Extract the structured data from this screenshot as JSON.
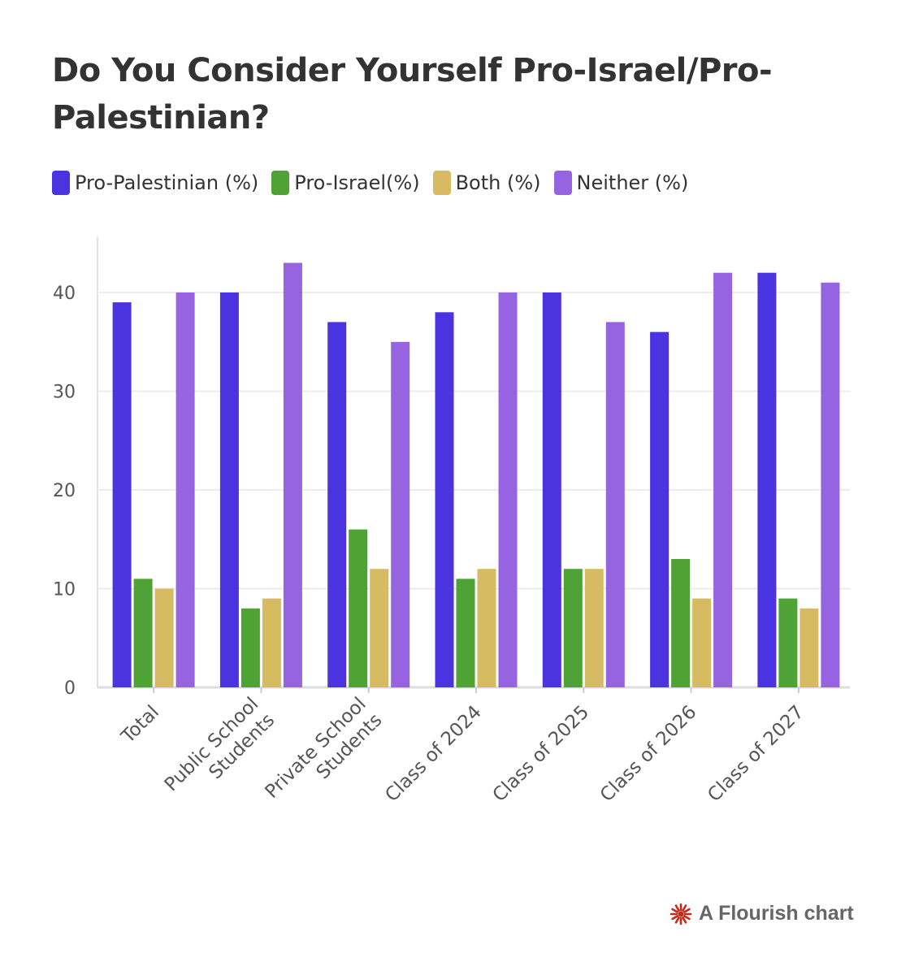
{
  "chart_data": {
    "type": "bar",
    "title": "Do You Consider Yourself Pro-Israel/Pro-Palestinian?",
    "categories": [
      "Total",
      "Public School Students",
      "Private School Students",
      "Class of 2024",
      "Class of 2025",
      "Class of 2026",
      "Class of 2027"
    ],
    "series": [
      {
        "name": "Pro-Palestinian (%)",
        "color": "#4b33e0",
        "values": [
          39,
          40,
          37,
          38,
          40,
          36,
          42
        ]
      },
      {
        "name": "Pro-Israel(%)",
        "color": "#4ea236",
        "values": [
          11,
          8,
          16,
          11,
          12,
          13,
          9
        ]
      },
      {
        "name": "Both (%)",
        "color": "#d6bb63",
        "values": [
          10,
          9,
          12,
          12,
          12,
          9,
          8
        ]
      },
      {
        "name": "Neither (%)",
        "color": "#9664e0",
        "values": [
          40,
          43,
          35,
          40,
          37,
          42,
          41
        ]
      }
    ],
    "xlabel": "",
    "ylabel": "",
    "ylim": [
      0,
      45
    ],
    "yticks": [
      0,
      10,
      20,
      30,
      40
    ],
    "grid": true,
    "legend_position": "top-left"
  },
  "footer": {
    "attribution": "A Flourish chart",
    "icon": "flourish-logo-icon"
  }
}
